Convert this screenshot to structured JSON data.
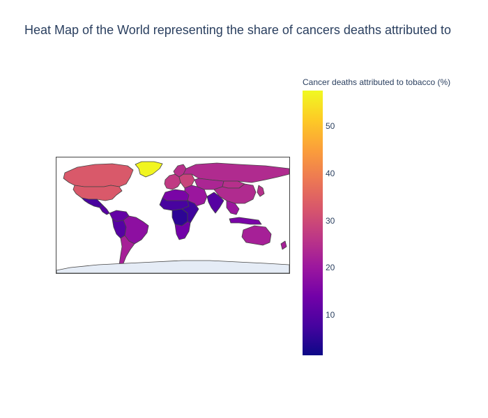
{
  "title": "Heat Map of the World representing the share of cancers deaths attributed to",
  "colorbar": {
    "title": "Cancer deaths attributed to tobacco (%)",
    "range": [
      1.5,
      57.5
    ],
    "ticks": [
      {
        "value": 50,
        "label": "50"
      },
      {
        "value": 40,
        "label": "40"
      },
      {
        "value": 30,
        "label": "30"
      },
      {
        "value": 20,
        "label": "20"
      },
      {
        "value": 10,
        "label": "10"
      }
    ],
    "colorscale": [
      "#0d0887",
      "#46039f",
      "#7201a8",
      "#9c179e",
      "#bd3786",
      "#d8576b",
      "#ed7953",
      "#fb9f3a",
      "#fdca26",
      "#f0f921"
    ]
  },
  "map": {
    "projection": "equirectangular",
    "land_outline_color": "#444444",
    "antarctica_color": "#e5ecf6",
    "regions": [
      {
        "name": "Greenland",
        "value": 57
      },
      {
        "name": "Canada",
        "value": 33
      },
      {
        "name": "United States",
        "value": 33
      },
      {
        "name": "Mexico",
        "value": 8
      },
      {
        "name": "Central America",
        "value": 10
      },
      {
        "name": "Colombia/Venezuela",
        "value": 12
      },
      {
        "name": "Peru/Bolivia",
        "value": 10
      },
      {
        "name": "Brazil",
        "value": 18
      },
      {
        "name": "Argentina/Chile",
        "value": 22
      },
      {
        "name": "Western Europe",
        "value": 27
      },
      {
        "name": "Scandinavia",
        "value": 25
      },
      {
        "name": "Eastern Europe",
        "value": 29
      },
      {
        "name": "Russia",
        "value": 24
      },
      {
        "name": "North Africa",
        "value": 15
      },
      {
        "name": "Sahel",
        "value": 8
      },
      {
        "name": "Central Africa",
        "value": 5
      },
      {
        "name": "East Africa",
        "value": 7
      },
      {
        "name": "Southern Africa",
        "value": 14
      },
      {
        "name": "Middle East",
        "value": 20
      },
      {
        "name": "Central Asia",
        "value": 23
      },
      {
        "name": "India",
        "value": 10
      },
      {
        "name": "China",
        "value": 24
      },
      {
        "name": "Mongolia",
        "value": 25
      },
      {
        "name": "Japan/Korea",
        "value": 25
      },
      {
        "name": "Southeast Asia",
        "value": 20
      },
      {
        "name": "Indonesia",
        "value": 15
      },
      {
        "name": "Australia",
        "value": 22
      },
      {
        "name": "New Zealand",
        "value": 22
      }
    ]
  }
}
